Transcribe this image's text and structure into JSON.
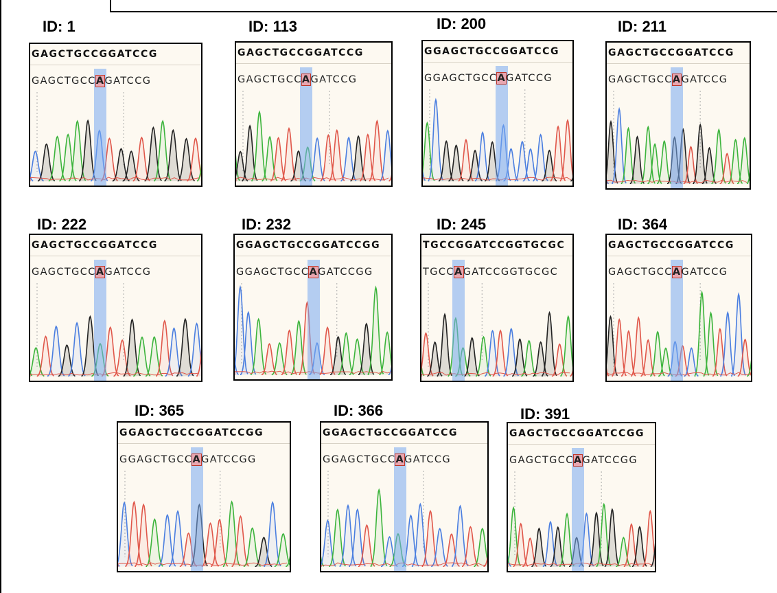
{
  "panels": [
    {
      "id": "ID: 1",
      "reference": "GAGCTGCCGGATCCG",
      "sample_before": "GAGCTGCC",
      "sample_variant": "A",
      "sample_after": "GATCCG"
    },
    {
      "id": "ID: 113",
      "reference": "GAGCTGCCGGATCCG",
      "sample_before": "GAGCTGCC",
      "sample_variant": "A",
      "sample_after": "GATCCG"
    },
    {
      "id": "ID: 200",
      "reference": "GGAGCTGCCGGATCCG",
      "sample_before": "GGAGCTGCC",
      "sample_variant": "A",
      "sample_after": "GATCCG"
    },
    {
      "id": "ID: 211",
      "reference": "GAGCTGCCGGATCCG",
      "sample_before": "GAGCTGCC",
      "sample_variant": "A",
      "sample_after": "GATCCG"
    },
    {
      "id": "ID: 222",
      "reference": "GAGCTGCCGGATCCG",
      "sample_before": "GAGCTGCC",
      "sample_variant": "A",
      "sample_after": "GATCCG"
    },
    {
      "id": "ID: 232",
      "reference": "GGAGCTGCCGGATCCGG",
      "sample_before": "GGAGCTGCC",
      "sample_variant": "A",
      "sample_after": "GATCCGG"
    },
    {
      "id": "ID: 245",
      "reference": "TGCCGGATCCGGTGCGC",
      "sample_before": "TGCC",
      "sample_variant": "A",
      "sample_after": "GATCCGGTGCGC"
    },
    {
      "id": "ID: 364",
      "reference": "GAGCTGCCGGATCCG",
      "sample_before": "GAGCTGCC",
      "sample_variant": "A",
      "sample_after": "GATCCG"
    },
    {
      "id": "ID: 365",
      "reference": "GGAGCTGCCGGATCCGG",
      "sample_before": "GGAGCTGCC",
      "sample_variant": "A",
      "sample_after": "GATCCGG"
    },
    {
      "id": "ID: 366",
      "reference": "GGAGCTGCCGGATCCG",
      "sample_before": "GGAGCTGCC",
      "sample_variant": "A",
      "sample_after": "GATCCG"
    },
    {
      "id": "ID: 391",
      "reference": "GAGCTGCCGGATCCGG",
      "sample_before": "GAGCTGCC",
      "sample_variant": "A",
      "sample_after": "GATCCGG"
    }
  ]
}
